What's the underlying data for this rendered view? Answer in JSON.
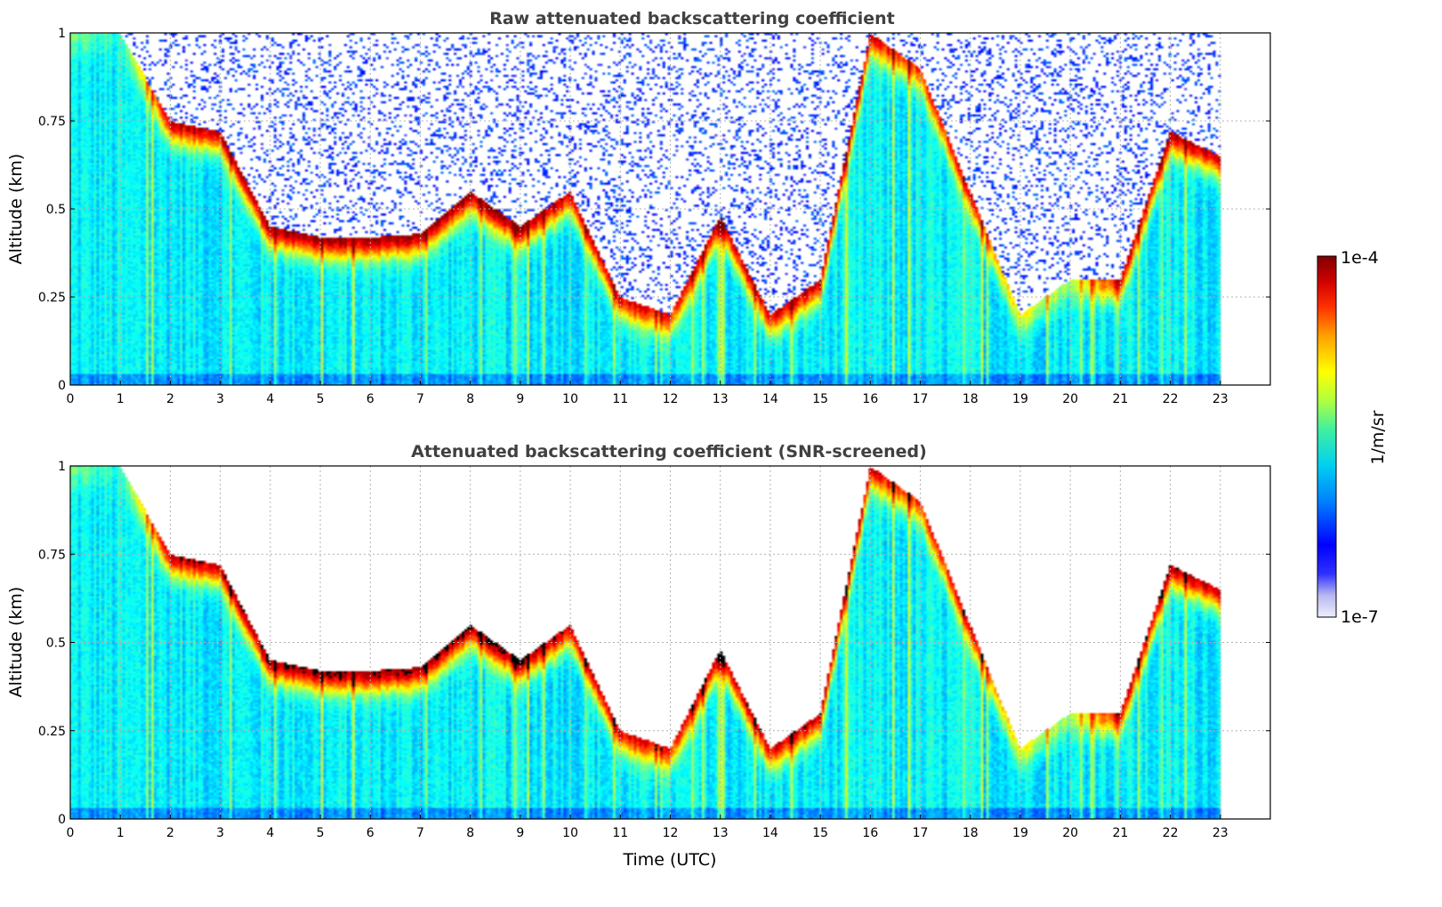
{
  "chart_data": [
    {
      "type": "heatmap",
      "title": "Raw attenuated backscattering coefficient",
      "xlabel": "",
      "ylabel": "Altitude (km)",
      "xlim": [
        0,
        24
      ],
      "ylim": [
        0,
        1
      ],
      "x_ticks": [
        "0",
        "1",
        "2",
        "3",
        "4",
        "5",
        "6",
        "7",
        "8",
        "9",
        "10",
        "11",
        "12",
        "13",
        "14",
        "15",
        "16",
        "17",
        "18",
        "19",
        "20",
        "21",
        "22",
        "23"
      ],
      "y_ticks": [
        "0",
        "0.25",
        "0.5",
        "0.75",
        "1"
      ],
      "data_end_hour": 23,
      "grid": true,
      "colormap": "jet",
      "color_scale": "log",
      "screened": false,
      "layer_profile": {
        "hours": [
          0,
          1,
          2,
          3,
          4,
          5,
          6,
          7,
          8,
          9,
          10,
          11,
          12,
          13,
          14,
          15,
          16,
          17,
          18,
          19,
          20,
          21,
          22,
          23
        ],
        "top_altitude_km": [
          1.0,
          1.0,
          0.75,
          0.72,
          0.45,
          0.42,
          0.42,
          0.43,
          0.55,
          0.45,
          0.55,
          0.25,
          0.2,
          0.48,
          0.2,
          0.3,
          1.0,
          0.9,
          0.55,
          0.2,
          0.3,
          0.3,
          0.72,
          0.65
        ],
        "top_log10_beta": [
          -5.6,
          -5.9,
          -4.2,
          -4.2,
          -4.1,
          -4.1,
          -4.1,
          -4.1,
          -4.1,
          -4.1,
          -4.2,
          -4.3,
          -4.5,
          -4.2,
          -4.3,
          -4.2,
          -4.3,
          -4.6,
          -4.4,
          -5.2,
          -5.5,
          -4.3,
          -4.2,
          -4.2
        ]
      }
    },
    {
      "type": "heatmap",
      "title": "Attenuated backscattering coefficient (SNR-screened)",
      "xlabel": "Time (UTC)",
      "ylabel": "Altitude (km)",
      "xlim": [
        0,
        24
      ],
      "ylim": [
        0,
        1
      ],
      "x_ticks": [
        "0",
        "1",
        "2",
        "3",
        "4",
        "5",
        "6",
        "7",
        "8",
        "9",
        "10",
        "11",
        "12",
        "13",
        "14",
        "15",
        "16",
        "17",
        "18",
        "19",
        "20",
        "21",
        "22",
        "23"
      ],
      "y_ticks": [
        "0",
        "0.25",
        "0.5",
        "0.75",
        "1"
      ],
      "data_end_hour": 23,
      "grid": true,
      "colormap": "jet",
      "color_scale": "log",
      "screened": true
    }
  ],
  "colorbar": {
    "min_label": "1e-7",
    "max_label": "1e-4",
    "min_value": 1e-07,
    "max_value": 0.0001,
    "unit_label": "1/m/sr",
    "colors": [
      "#e8e8f8",
      "#0000ff",
      "#00bfff",
      "#29e0c0",
      "#80ff80",
      "#ffff00",
      "#ff8c00",
      "#ff2000",
      "#800000"
    ]
  }
}
